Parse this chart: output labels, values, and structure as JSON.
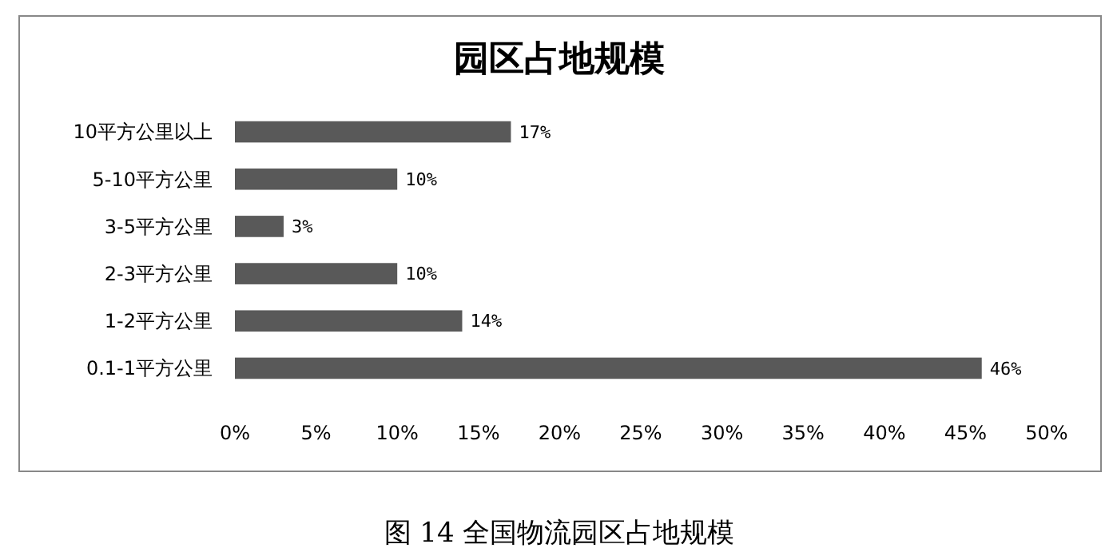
{
  "chart_data": {
    "type": "bar",
    "orientation": "horizontal",
    "title": "园区占地规模",
    "categories": [
      "10平方公里以上",
      "5-10平方公里",
      "3-5平方公里",
      "2-3平方公里",
      "1-2平方公里",
      "0.1-1平方公里"
    ],
    "values": [
      17,
      10,
      3,
      10,
      14,
      46
    ],
    "value_labels": [
      "17%",
      "10%",
      "3%",
      "10%",
      "14%",
      "46%"
    ],
    "color": "#595959",
    "xlim": [
      0,
      50
    ],
    "xticks": [
      {
        "value": 0,
        "label": "0%"
      },
      {
        "value": 5,
        "label": "5%"
      },
      {
        "value": 10,
        "label": "10%"
      },
      {
        "value": 15,
        "label": "15%"
      },
      {
        "value": 20,
        "label": "20%"
      },
      {
        "value": 25,
        "label": "25%"
      },
      {
        "value": 30,
        "label": "30%"
      },
      {
        "value": 35,
        "label": "35%"
      },
      {
        "value": 40,
        "label": "40%"
      },
      {
        "value": 45,
        "label": "45%"
      },
      {
        "value": 50,
        "label": "50%"
      }
    ],
    "annotations": [
      "图 14  全国物流园区占地规模"
    ]
  }
}
